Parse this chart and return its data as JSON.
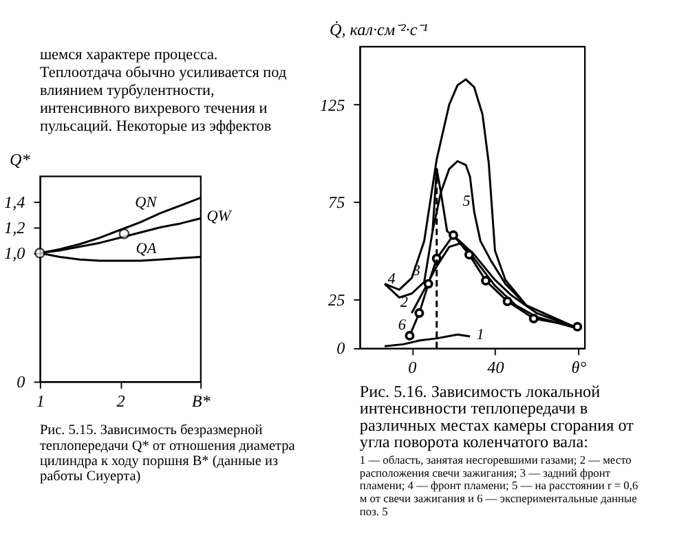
{
  "chart_data": [
    {
      "type": "line",
      "subtitle": "шемся характере процесса. Теплоотдача обычно усиливается под влиянием турбулентности, интенсивного вихревого течения и пульсаций. Некоторые из эффектов",
      "ylabel": "Q*",
      "xlim": [
        1,
        3
      ],
      "xticks": [
        1,
        2,
        {
          "value": 3,
          "label": "B*"
        }
      ],
      "ylim": [
        0,
        1.6
      ],
      "yticks": [
        0,
        {
          "value": 1.0,
          "label": "1,0"
        },
        {
          "value": 1.2,
          "label": "1,2"
        },
        {
          "value": 1.4,
          "label": "1,4"
        }
      ],
      "grid": false,
      "series": [
        {
          "color": "#000000",
          "x": [
            1,
            1.25,
            1.5,
            1.75,
            2,
            2.25,
            2.5,
            2.75,
            3
          ],
          "values": [
            1.0,
            1.03,
            1.07,
            1.12,
            1.18,
            1.24,
            1.31,
            1.37,
            1.43
          ]
        },
        {
          "color": "#000000",
          "x": [
            1,
            1.25,
            1.5,
            1.75,
            2,
            2.25,
            2.5,
            2.75,
            3
          ],
          "values": [
            1.0,
            1.02,
            1.05,
            1.08,
            1.12,
            1.16,
            1.2,
            1.23,
            1.27
          ]
        },
        {
          "color": "#000000",
          "x": [
            1,
            1.25,
            1.5,
            1.75,
            2,
            2.25,
            2.5,
            2.75,
            3
          ],
          "values": [
            1.0,
            0.97,
            0.95,
            0.94,
            0.94,
            0.94,
            0.95,
            0.96,
            0.97
          ]
        },
        {
          "type": "scatter",
          "marker": "circle",
          "color": "#000000",
          "x": [
            1,
            2.05
          ],
          "values": [
            1.0,
            1.15
          ]
        }
      ],
      "annotations": [
        {
          "text": "QN",
          "x": 2.5,
          "y": 1.31
        },
        {
          "text": "QW",
          "x": 3,
          "y": 1.27
        },
        {
          "text": "QA",
          "x": 2.5,
          "y": 0.95
        },
        "Рис. 5.15. Зависимость безразмерной теплопередачи Q* от отношения диаметра цилиндра к ходу поршня B* (данные из работы Сиуерта)"
      ]
    },
    {
      "type": "line",
      "ylabel": "Q̇, кал·см⁻²·с⁻¹",
      "xlim": [
        -25,
        83
      ],
      "xticks": [
        0,
        40,
        {
          "value": 80,
          "label": "θ°"
        }
      ],
      "ylim": [
        0,
        155
      ],
      "yticks": [
        0,
        25,
        75,
        125
      ],
      "grid": false,
      "series": [
        {
          "color": "#000000",
          "x": [
            -13,
            -6,
            0,
            6,
            12,
            18,
            22,
            26,
            30,
            34,
            37,
            40,
            45,
            55,
            80
          ],
          "values": [
            33,
            30,
            36,
            55,
            97,
            125,
            135,
            138,
            134,
            120,
            95,
            50,
            35,
            22,
            10
          ]
        },
        {
          "color": "#000000",
          "x": [
            10,
            14,
            18,
            22,
            26,
            28,
            30,
            33,
            38,
            45,
            55,
            80
          ],
          "values": [
            60,
            80,
            92,
            96,
            94,
            88,
            70,
            55,
            45,
            33,
            22,
            10
          ]
        },
        {
          "color": "#000000",
          "x": [
            -13,
            -6,
            0,
            6,
            10,
            12,
            14,
            17,
            22,
            30,
            40,
            48,
            60,
            80
          ],
          "values": [
            33,
            26,
            28,
            34,
            60,
            92,
            80,
            60,
            56,
            48,
            35,
            27,
            18,
            10
          ]
        },
        {
          "color": "#000000",
          "x": [
            0,
            6,
            12,
            18,
            24,
            30,
            40,
            50,
            60,
            80
          ],
          "values": [
            18,
            30,
            42,
            52,
            54,
            46,
            32,
            22,
            16,
            10
          ]
        },
        {
          "color": "#000000",
          "x": [
            -13,
            -4,
            4,
            12,
            22,
            28
          ],
          "values": [
            1,
            2,
            4,
            5,
            7,
            6
          ]
        },
        {
          "color": "#000000",
          "marker": "circle",
          "x": [
            -1,
            3.6,
            8,
            12,
            20,
            27.6,
            35.6,
            46,
            58.6,
            79.6
          ],
          "values": [
            6.4,
            18,
            33,
            46,
            58,
            48,
            34.6,
            24,
            15.2,
            11
          ]
        },
        {
          "color": "#000000",
          "line_style": "dashed",
          "x": [
            12,
            12
          ],
          "values": [
            0,
            92
          ]
        }
      ],
      "annotations": [
        {
          "text": "4",
          "x": -6,
          "y": 30
        },
        {
          "text": "3",
          "x": 6,
          "y": 34
        },
        {
          "text": "2",
          "x": 0,
          "y": 18
        },
        {
          "text": "6",
          "x": -1,
          "y": 6.4
        },
        {
          "text": "1",
          "x": 28,
          "y": 6
        },
        {
          "text": "5",
          "x": 30,
          "y": 70
        },
        "Рис. 5.16. Зависимость локальной интенсивности теплопередачи в различных местах камеры сгорания от угла поворота коленчатого вала:",
        "1 — область, занятая несгоревшими газами; 2 — место расположения свечи зажигания; 3 — задний фронт пламени; 4 — фронт пламени; 5 — на расстоянии r = 0,6 м от свечи зажигания и 6 — экспериментальные данные поз. 5"
      ]
    }
  ]
}
